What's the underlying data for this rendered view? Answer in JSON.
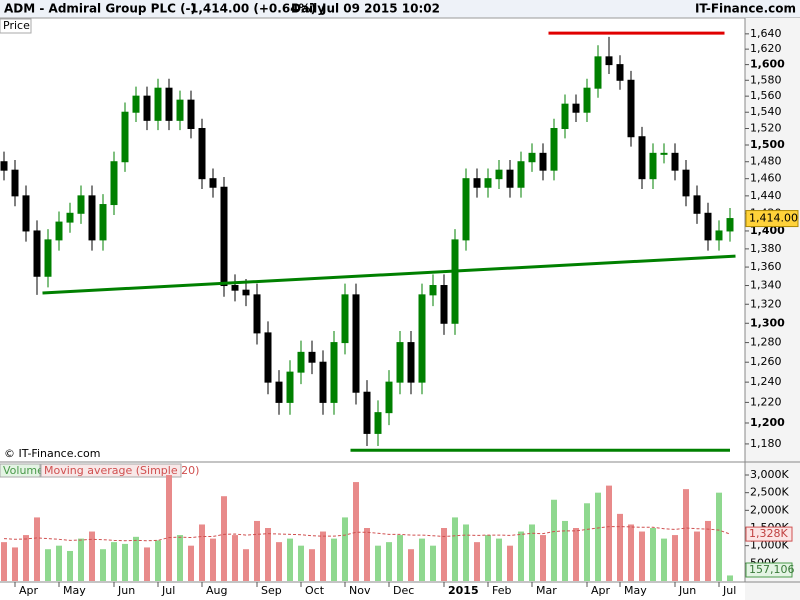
{
  "chart_data": {
    "type": "candlestick",
    "header": {
      "symbol": "ADM - Admiral Group PLC (-)",
      "last": "1,414.00 (+0.64%)",
      "period": "Daily",
      "datetime": "Jul 09 2015 10:02",
      "source": "IT-Finance.com"
    },
    "panel_label": "Price",
    "copyright": "© IT-Finance.com",
    "log": true,
    "up_color": "#008000",
    "down_color": "#000000",
    "categories": [
      null,
      "Apr",
      null,
      null,
      null,
      "May",
      null,
      null,
      null,
      null,
      "Jun",
      null,
      null,
      null,
      "Jul",
      null,
      null,
      null,
      "Aug",
      null,
      null,
      null,
      null,
      "Sep",
      null,
      null,
      null,
      "Oct",
      null,
      null,
      null,
      "Nov",
      null,
      null,
      null,
      "Dec",
      null,
      null,
      null,
      null,
      "2015",
      null,
      null,
      null,
      "Feb",
      null,
      null,
      null,
      "Mar",
      null,
      null,
      null,
      null,
      "Apr",
      null,
      null,
      "May",
      null,
      null,
      null,
      null,
      "Jun",
      null,
      null,
      null,
      "Jul",
      null
    ],
    "open": [
      1480,
      1470,
      1440,
      1400,
      1350,
      1390,
      1410,
      1420,
      1440,
      1390,
      1430,
      1480,
      1540,
      1560,
      1530,
      1570,
      1530,
      1555,
      1520,
      1460,
      1450,
      1340,
      1335,
      1330,
      1290,
      1240,
      1220,
      1250,
      1270,
      1260,
      1220,
      1280,
      1330,
      1230,
      1190,
      1210,
      1240,
      1280,
      1240,
      1330,
      1340,
      1300,
      1390,
      1460,
      1450,
      1460,
      1470,
      1450,
      1480,
      1490,
      1470,
      1520,
      1550,
      1540,
      1570,
      1610,
      1600,
      1580,
      1510,
      1460,
      1490,
      1490,
      1470,
      1440,
      1420,
      1390,
      1400
    ],
    "high": [
      1492,
      1482,
      1452,
      1412,
      1402,
      1422,
      1432,
      1452,
      1452,
      1442,
      1492,
      1552,
      1572,
      1572,
      1582,
      1582,
      1567,
      1567,
      1532,
      1472,
      1462,
      1352,
      1347,
      1342,
      1302,
      1252,
      1262,
      1282,
      1282,
      1272,
      1292,
      1342,
      1342,
      1242,
      1222,
      1252,
      1292,
      1292,
      1342,
      1352,
      1352,
      1402,
      1472,
      1472,
      1472,
      1482,
      1482,
      1492,
      1502,
      1502,
      1532,
      1562,
      1562,
      1582,
      1625,
      1636,
      1612,
      1592,
      1522,
      1502,
      1502,
      1502,
      1482,
      1452,
      1432,
      1412,
      1426
    ],
    "low": [
      1458,
      1428,
      1388,
      1330,
      1338,
      1378,
      1398,
      1408,
      1378,
      1378,
      1418,
      1468,
      1528,
      1518,
      1518,
      1518,
      1518,
      1508,
      1448,
      1438,
      1328,
      1323,
      1318,
      1278,
      1228,
      1208,
      1208,
      1238,
      1248,
      1208,
      1208,
      1268,
      1218,
      1178,
      1178,
      1198,
      1228,
      1228,
      1228,
      1318,
      1288,
      1288,
      1378,
      1438,
      1438,
      1448,
      1438,
      1438,
      1468,
      1458,
      1458,
      1508,
      1528,
      1528,
      1558,
      1588,
      1568,
      1498,
      1448,
      1448,
      1478,
      1458,
      1428,
      1408,
      1378,
      1378,
      1388
    ],
    "close": [
      1470,
      1440,
      1400,
      1350,
      1390,
      1410,
      1420,
      1440,
      1390,
      1430,
      1480,
      1540,
      1560,
      1530,
      1570,
      1530,
      1555,
      1520,
      1460,
      1450,
      1340,
      1335,
      1330,
      1290,
      1240,
      1220,
      1250,
      1270,
      1260,
      1220,
      1280,
      1330,
      1230,
      1190,
      1210,
      1240,
      1280,
      1240,
      1330,
      1340,
      1300,
      1390,
      1460,
      1450,
      1460,
      1470,
      1450,
      1480,
      1490,
      1470,
      1520,
      1550,
      1540,
      1570,
      1610,
      1600,
      1580,
      1510,
      1460,
      1490,
      1490,
      1470,
      1440,
      1420,
      1390,
      1400,
      1414
    ],
    "last_price": {
      "value": 1414,
      "label": "1,414.00"
    },
    "ylim": [
      1163,
      1661
    ],
    "yticks": [
      {
        "value": 1640,
        "label": "1,640"
      },
      {
        "value": 1620,
        "label": "1,620"
      },
      {
        "value": 1600,
        "label": "1,600"
      },
      {
        "value": 1580,
        "label": "1,580"
      },
      {
        "value": 1560,
        "label": "1,560"
      },
      {
        "value": 1540,
        "label": "1,540"
      },
      {
        "value": 1520,
        "label": "1,520"
      },
      {
        "value": 1500,
        "label": "1,500"
      },
      {
        "value": 1480,
        "label": "1,480"
      },
      {
        "value": 1460,
        "label": "1,460"
      },
      {
        "value": 1440,
        "label": "1,440"
      },
      {
        "value": 1420,
        "label": "1,420"
      },
      {
        "value": 1400,
        "label": "1,400"
      },
      {
        "value": 1380,
        "label": "1,380"
      },
      {
        "value": 1360,
        "label": "1,360"
      },
      {
        "value": 1340,
        "label": "1,340"
      },
      {
        "value": 1320,
        "label": "1,320"
      },
      {
        "value": 1300,
        "label": "1,300"
      },
      {
        "value": 1280,
        "label": "1,280"
      },
      {
        "value": 1260,
        "label": "1,260"
      },
      {
        "value": 1240,
        "label": "1,240"
      },
      {
        "value": 1220,
        "label": "1,220"
      },
      {
        "value": 1200,
        "label": "1,200"
      },
      {
        "value": 1180,
        "label": "1,180"
      }
    ],
    "trendlines": [
      {
        "color": "#008000",
        "x": [
          3.5,
          66.5
        ],
        "y": [
          1332,
          1372
        ]
      },
      {
        "color": "#e00000",
        "x": [
          49.5,
          65.5
        ],
        "y": [
          1641,
          1641
        ]
      },
      {
        "color": "#008000",
        "x": [
          31.5,
          66
        ],
        "y": [
          1174,
          1174
        ]
      }
    ],
    "volume": {
      "name": "Volume",
      "ma_name": "Moving average (Simple 20)",
      "up_color": "#8fd88f",
      "down_color": "#e88a8a",
      "ma_color": "#d05050",
      "values": [
        1100,
        950,
        1300,
        1800,
        900,
        1000,
        850,
        1200,
        1400,
        900,
        1100,
        1050,
        1250,
        950,
        1150,
        3000,
        1300,
        1000,
        1600,
        1200,
        2400,
        1300,
        900,
        1700,
        1500,
        1100,
        1200,
        1000,
        900,
        1400,
        1200,
        1800,
        2800,
        1500,
        1000,
        1100,
        1300,
        900,
        1200,
        1000,
        1500,
        1800,
        1600,
        1100,
        1300,
        1200,
        1000,
        1400,
        1600,
        1300,
        2300,
        1700,
        1500,
        2200,
        2500,
        2700,
        1900,
        1600,
        1400,
        1500,
        1200,
        1300,
        2600,
        1400,
        1700,
        2500,
        157.106
      ],
      "ma": [
        1200,
        1180,
        1190,
        1220,
        1200,
        1180,
        1150,
        1160,
        1180,
        1170,
        1150,
        1140,
        1150,
        1140,
        1150,
        1230,
        1240,
        1230,
        1260,
        1260,
        1320,
        1330,
        1300,
        1320,
        1340,
        1330,
        1320,
        1310,
        1280,
        1270,
        1270,
        1300,
        1380,
        1380,
        1350,
        1320,
        1320,
        1300,
        1300,
        1280,
        1260,
        1280,
        1300,
        1290,
        1300,
        1300,
        1290,
        1320,
        1350,
        1340,
        1400,
        1420,
        1420,
        1460,
        1500,
        1540,
        1540,
        1530,
        1520,
        1520,
        1480,
        1460,
        1500,
        1480,
        1470,
        1440,
        1328
      ],
      "ma_label": {
        "value": 1328,
        "label": "1,328K"
      },
      "last_label": {
        "value": 157.106,
        "label": "157,106"
      },
      "ylim": [
        0,
        3340
      ],
      "yticks": [
        {
          "value": 3000,
          "label": "3,000K"
        },
        {
          "value": 2500,
          "label": "2,500K"
        },
        {
          "value": 2000,
          "label": "2,000K"
        },
        {
          "value": 1500,
          "label": "1,500K"
        },
        {
          "value": 1000,
          "label": "1,000K"
        },
        {
          "value": 500,
          "label": "500K"
        }
      ]
    }
  }
}
